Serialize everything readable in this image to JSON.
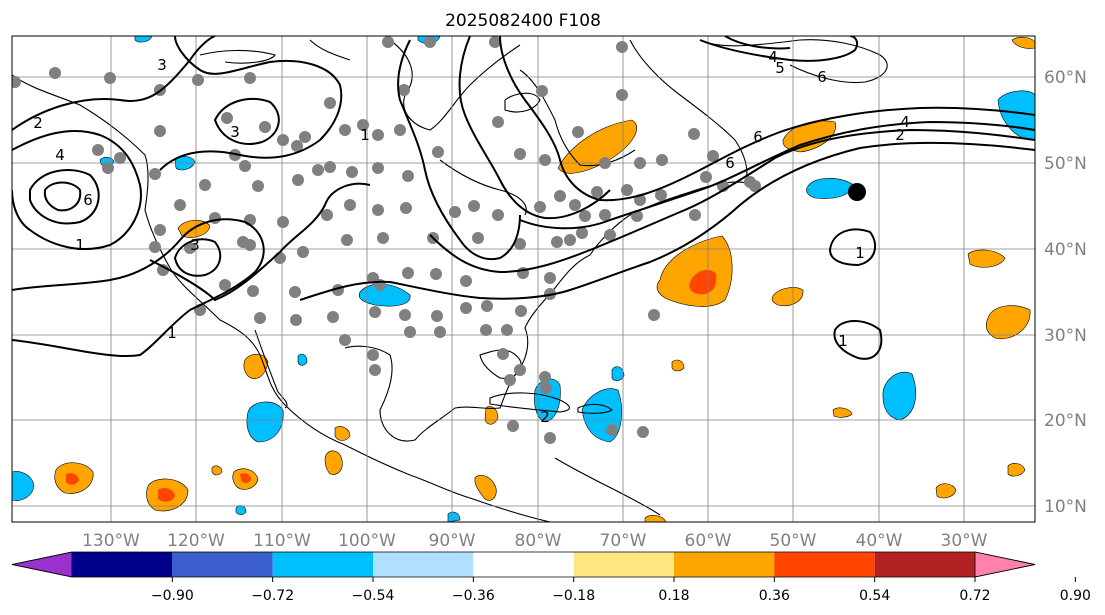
{
  "title": "2025082400 F108",
  "lon_labels": [
    "130°W",
    "120°W",
    "110°W",
    "100°W",
    "90°W",
    "80°W",
    "70°W",
    "60°W",
    "50°W",
    "40°W",
    "30°W"
  ],
  "lat_labels": [
    "60°N",
    "50°N",
    "40°N",
    "30°N",
    "20°N",
    "10°N"
  ],
  "colorbar": {
    "ticks": [
      "−0.90",
      "−0.72",
      "−0.54",
      "−0.36",
      "−0.18",
      "0.18",
      "0.36",
      "0.54",
      "0.72",
      "0.90"
    ],
    "colors": [
      "#9932cc",
      "#00008b",
      "#3a5fcd",
      "#00bfff",
      "#afe0ff",
      "#ffffff",
      "#ffe680",
      "#ffa500",
      "#ff4500",
      "#b22222",
      "#ff82ab"
    ]
  },
  "contour_labels": [
    "3",
    "2",
    "4",
    "6",
    "3",
    "1",
    "3",
    "1",
    "1",
    "6",
    "4",
    "2",
    "6",
    "4",
    "5",
    "6",
    "1",
    "1",
    "2"
  ],
  "colors": {
    "contour": "#000000",
    "grid": "#808080",
    "station": "#808080",
    "storm_marker": "#000000",
    "positive_fill": "#ffa500",
    "negative_fill": "#00bfff"
  }
}
